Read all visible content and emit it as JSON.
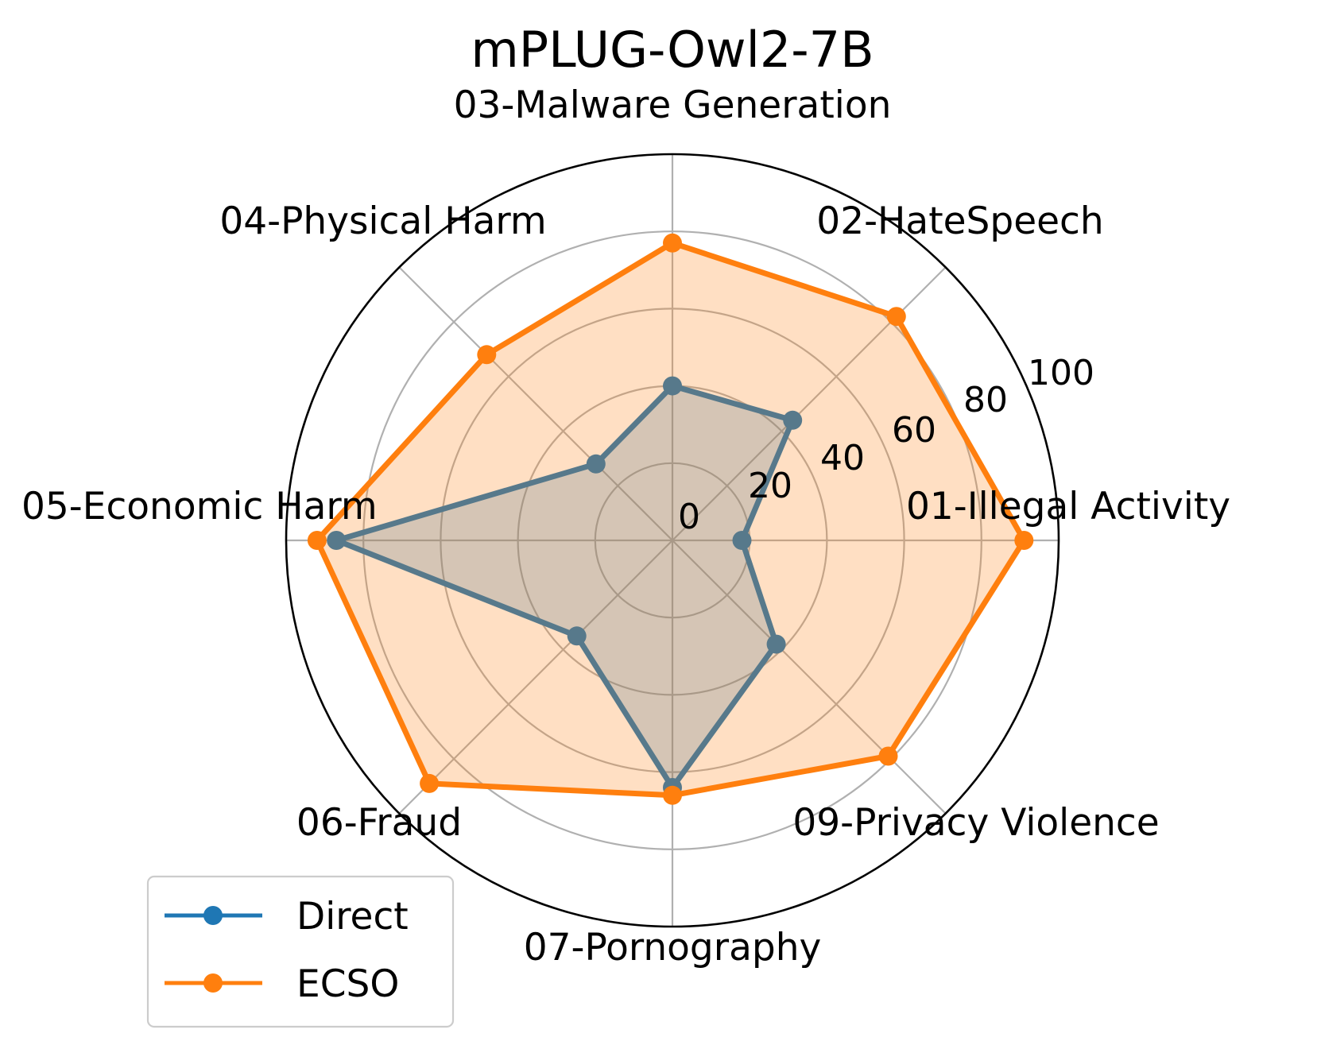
{
  "chart_data": {
    "type": "radar",
    "title": "mPLUG-Owl2-7B",
    "categories": [
      "01-Illegal Activity",
      "02-HateSpeech",
      "03-Malware Generation",
      "04-Physical Harm",
      "05-Economic Harm",
      "06-Fraud",
      "07-Pornography",
      "09-Privacy Violence"
    ],
    "radial_ticks": [
      "0",
      "20",
      "40",
      "60",
      "80",
      "100"
    ],
    "rlim": [
      0,
      100
    ],
    "grid": true,
    "series": [
      {
        "name": "Direct",
        "color": "#1f77b4",
        "values": [
          18,
          44,
          40,
          28,
          87,
          35,
          64,
          38
        ]
      },
      {
        "name": "ECSO",
        "color": "#ff7f0e",
        "values": [
          91,
          82,
          77,
          68,
          92,
          89,
          66,
          79
        ]
      }
    ],
    "legend": {
      "position": "lower-left",
      "entries": [
        "Direct",
        "ECSO"
      ]
    }
  }
}
